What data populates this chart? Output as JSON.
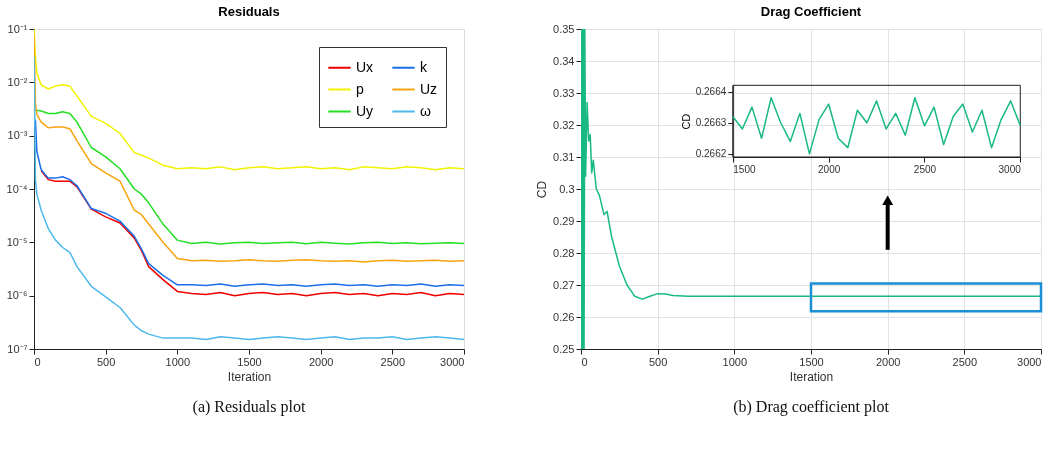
{
  "chart_data": [
    {
      "type": "line",
      "title": "Residuals",
      "xlabel": "Iteration",
      "log": "y",
      "grid": false,
      "legend": "top right",
      "x": [
        0,
        10,
        20,
        50,
        100,
        150,
        200,
        250,
        300,
        400,
        500,
        600,
        700,
        750,
        800,
        900,
        1000,
        1100,
        1200,
        1300,
        1400,
        1500,
        1600,
        1700,
        1800,
        1900,
        2000,
        2100,
        2200,
        2300,
        2400,
        2500,
        2600,
        2700,
        2800,
        2900,
        3000
      ],
      "xlim": [
        0,
        3000
      ],
      "xticks": [
        0,
        500,
        1000,
        1500,
        2000,
        2500,
        3000
      ],
      "ylim": [
        1e-07,
        0.1
      ],
      "yticks": [
        {
          "value": 1e-07,
          "label": "10⁻⁷"
        },
        {
          "value": 1e-06,
          "label": "10⁻⁶"
        },
        {
          "value": 1e-05,
          "label": "10⁻⁵"
        },
        {
          "value": 0.0001,
          "label": "10⁻⁴"
        },
        {
          "value": 0.001,
          "label": "10⁻³"
        },
        {
          "value": 0.01,
          "label": "10⁻²"
        },
        {
          "value": 0.1,
          "label": "10⁻¹"
        }
      ],
      "annotations": [
        "(a) Residuals plot"
      ],
      "series": [
        {
          "name": "Ux",
          "color": "#ee0000",
          "values": [
            null,
            null,
            null,
            0.00022,
            0.00015,
            0.00014,
            0.00014,
            0.00014,
            0.00011,
            4.2e-05,
            3e-05,
            2.3e-05,
            1.2e-05,
            7e-06,
            3.5e-06,
            2e-06,
            1.2e-06,
            1.1e-06,
            1.05e-06,
            1.15e-06,
            1e-06,
            1.1e-06,
            1.15e-06,
            1.05e-06,
            1.1e-06,
            1e-06,
            1.1e-06,
            1.15e-06,
            1.05e-06,
            1.1e-06,
            1e-06,
            1.1e-06,
            1.05e-06,
            1.15e-06,
            1e-06,
            1.1e-06,
            1.05e-06
          ]
        },
        {
          "name": "p",
          "color": "#f2f200",
          "values": [
            0.1,
            0.03,
            0.015,
            0.009,
            0.0075,
            0.0085,
            0.009,
            0.0085,
            0.0055,
            0.0023,
            0.0017,
            0.0011,
            0.00048,
            0.00043,
            0.00038,
            0.00028,
            0.00024,
            0.00025,
            0.00024,
            0.00026,
            0.00023,
            0.00025,
            0.00026,
            0.00024,
            0.00025,
            0.00026,
            0.00024,
            0.00025,
            0.00023,
            0.00026,
            0.00025,
            0.00024,
            0.00026,
            0.00025,
            0.00023,
            0.00025,
            0.00024
          ]
        },
        {
          "name": "Uy",
          "color": "#22e022",
          "values": [
            null,
            0.003,
            0.003,
            0.0029,
            0.0026,
            0.0026,
            0.0028,
            0.0026,
            0.0018,
            0.0006,
            0.0004,
            0.00024,
            0.0001,
            8e-05,
            5.5e-05,
            2.2e-05,
            1.1e-05,
            9.5e-06,
            1e-05,
            9.3e-06,
            9.8e-06,
            1e-05,
            9.5e-06,
            9.8e-06,
            1e-05,
            9.4e-06,
            1e-05,
            9.6e-06,
            9.3e-06,
            9.8e-06,
            1e-05,
            9.5e-06,
            9.8e-06,
            9.4e-06,
            9.6e-06,
            9.8e-06,
            9.5e-06
          ]
        },
        {
          "name": "k",
          "color": "#1a6fe8",
          "values": [
            null,
            0.002,
            0.0005,
            0.00023,
            0.00016,
            0.00016,
            0.00017,
            0.00015,
            0.000115,
            4.3e-05,
            3.5e-05,
            2.5e-05,
            1.3e-05,
            7.5e-06,
            4e-06,
            2.4e-06,
            1.6e-06,
            1.6e-06,
            1.55e-06,
            1.65e-06,
            1.5e-06,
            1.6e-06,
            1.65e-06,
            1.55e-06,
            1.6e-06,
            1.5e-06,
            1.6e-06,
            1.65e-06,
            1.55e-06,
            1.6e-06,
            1.5e-06,
            1.6e-06,
            1.55e-06,
            1.65e-06,
            1.5e-06,
            1.6e-06,
            1.55e-06
          ]
        },
        {
          "name": "Uz",
          "color": "#f7a310",
          "values": [
            0.08,
            0.004,
            0.0025,
            0.0018,
            0.0014,
            0.00145,
            0.00145,
            0.00135,
            0.0008,
            0.0003,
            0.0002,
            0.00014,
            4e-05,
            3.3e-05,
            2.2e-05,
            1e-05,
            5e-06,
            4.5e-06,
            4.6e-06,
            4.4e-06,
            4.5e-06,
            4.7e-06,
            4.5e-06,
            4.4e-06,
            4.6e-06,
            4.7e-06,
            4.5e-06,
            4.4e-06,
            4.5e-06,
            4.3e-06,
            4.5e-06,
            4.6e-06,
            4.4e-06,
            4.5e-06,
            4.6e-06,
            4.4e-06,
            4.5e-06
          ]
        },
        {
          "name": "ω",
          "color": "#4cb8ec",
          "values": [
            0.03,
            0.00015,
            8e-05,
            4e-05,
            1.8e-05,
            1.1e-05,
            8e-06,
            6.5e-06,
            3.5e-06,
            1.5e-06,
            9.5e-07,
            6e-07,
            2.8e-07,
            2.2e-07,
            1.9e-07,
            1.6e-07,
            1.6e-07,
            1.6e-07,
            1.5e-07,
            1.7e-07,
            1.6e-07,
            1.5e-07,
            1.6e-07,
            1.7e-07,
            1.6e-07,
            1.5e-07,
            1.6e-07,
            1.7e-07,
            1.5e-07,
            1.6e-07,
            1.6e-07,
            1.7e-07,
            1.5e-07,
            1.6e-07,
            1.7e-07,
            1.6e-07,
            1.5e-07
          ]
        }
      ]
    },
    {
      "type": "line",
      "title": "Drag Coefficient",
      "xlabel": "Iteration",
      "ylabel": "CD",
      "grid": true,
      "x": [
        0,
        5,
        10,
        15,
        20,
        25,
        30,
        40,
        50,
        60,
        70,
        80,
        100,
        120,
        150,
        170,
        200,
        250,
        300,
        350,
        400,
        450,
        500,
        550,
        600,
        700,
        800,
        1000,
        1500,
        2000,
        2500,
        3000
      ],
      "xlim": [
        0,
        3000
      ],
      "xticks": [
        0,
        500,
        1000,
        1500,
        2000,
        2500,
        3000
      ],
      "ylim": [
        0.25,
        0.35
      ],
      "yticks": [
        0.25,
        0.26,
        0.27,
        0.28,
        0.29,
        0.3,
        0.31,
        0.32,
        0.33,
        0.34,
        0.35
      ],
      "annotations": [
        "(b) Drag coefficient plot"
      ],
      "series": [
        {
          "color": "#18b982",
          "values": [
            0.25,
            0.35,
            0.25,
            0.35,
            0.25,
            0.35,
            0.304,
            0.327,
            0.315,
            0.317,
            0.305,
            0.309,
            0.3,
            0.298,
            0.292,
            0.293,
            0.285,
            0.276,
            0.27,
            0.2665,
            0.2656,
            0.2665,
            0.2673,
            0.2672,
            0.2667,
            0.2665,
            0.2665,
            0.2665,
            0.2665,
            0.2665,
            0.2665,
            0.2665
          ]
        }
      ]
    },
    {
      "type": "line",
      "ylabel": "CD",
      "grid": false,
      "x": [
        1500,
        1550,
        1600,
        1650,
        1700,
        1750,
        1800,
        1850,
        1900,
        1950,
        2000,
        2050,
        2100,
        2150,
        2200,
        2250,
        2300,
        2350,
        2400,
        2450,
        2500,
        2550,
        2600,
        2650,
        2700,
        2750,
        2800,
        2850,
        2900,
        2950,
        3000
      ],
      "xlim": [
        1500,
        3000
      ],
      "xticks": [
        1500,
        2000,
        2500,
        3000
      ],
      "ylim": [
        0.26619,
        0.26642
      ],
      "yticks": [
        0.2662,
        0.2663,
        0.2664
      ],
      "series": [
        {
          "color": "#18b982",
          "values": [
            0.26632,
            0.26628,
            0.26635,
            0.26625,
            0.26638,
            0.2663,
            0.26624,
            0.26633,
            0.2662,
            0.26631,
            0.26636,
            0.26625,
            0.26622,
            0.26634,
            0.2663,
            0.26637,
            0.26628,
            0.26633,
            0.26626,
            0.26638,
            0.26629,
            0.26635,
            0.26623,
            0.26632,
            0.26636,
            0.26627,
            0.26634,
            0.26622,
            0.26631,
            0.26637,
            0.26629
          ]
        }
      ]
    }
  ]
}
